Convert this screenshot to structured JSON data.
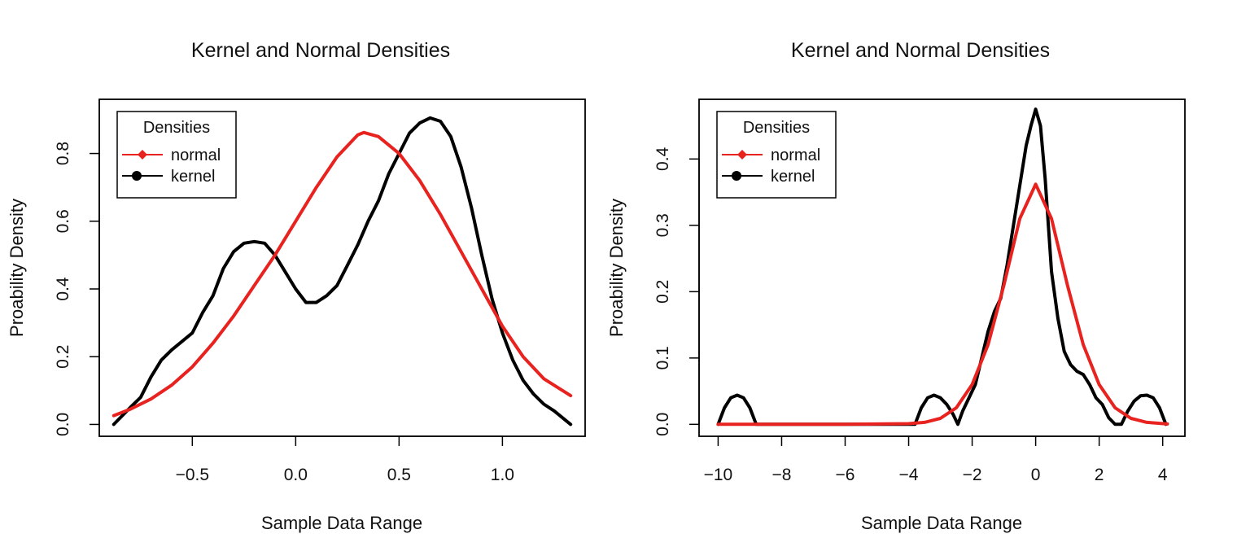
{
  "chart_data": [
    {
      "type": "line",
      "title": "Kernel and Normal Densities",
      "xlabel": "Sample Data Range",
      "ylabel": "Proability Density",
      "xlim": [
        -0.95,
        1.4
      ],
      "ylim": [
        -0.035,
        0.96
      ],
      "xticks": [
        -0.5,
        0.0,
        0.5,
        1.0
      ],
      "xtick_labels": [
        "−0.5",
        "0.0",
        "0.5",
        "1.0"
      ],
      "yticks": [
        0.0,
        0.2,
        0.4,
        0.6,
        0.8
      ],
      "ytick_labels": [
        "0.0",
        "0.2",
        "0.4",
        "0.6",
        "0.8"
      ],
      "grid": false,
      "legend": {
        "title": "Densities",
        "position": "top-left",
        "entries": [
          "normal",
          "kernel"
        ]
      },
      "series": [
        {
          "name": "normal",
          "color": "#e8231f",
          "x": [
            -0.88,
            -0.8,
            -0.7,
            -0.6,
            -0.5,
            -0.4,
            -0.3,
            -0.2,
            -0.1,
            0.0,
            0.1,
            0.2,
            0.3,
            0.33,
            0.4,
            0.5,
            0.6,
            0.7,
            0.8,
            0.9,
            1.0,
            1.1,
            1.2,
            1.33
          ],
          "y": [
            0.026,
            0.045,
            0.075,
            0.116,
            0.17,
            0.24,
            0.32,
            0.41,
            0.5,
            0.6,
            0.7,
            0.79,
            0.855,
            0.862,
            0.85,
            0.8,
            0.72,
            0.62,
            0.51,
            0.4,
            0.29,
            0.2,
            0.135,
            0.085
          ]
        },
        {
          "name": "kernel",
          "color": "#000000",
          "x": [
            -0.88,
            -0.8,
            -0.75,
            -0.7,
            -0.65,
            -0.6,
            -0.5,
            -0.45,
            -0.4,
            -0.35,
            -0.3,
            -0.25,
            -0.2,
            -0.15,
            -0.1,
            -0.05,
            0.0,
            0.05,
            0.1,
            0.15,
            0.2,
            0.25,
            0.3,
            0.35,
            0.4,
            0.45,
            0.5,
            0.55,
            0.6,
            0.65,
            0.7,
            0.75,
            0.8,
            0.85,
            0.9,
            0.95,
            1.0,
            1.05,
            1.1,
            1.15,
            1.2,
            1.25,
            1.33
          ],
          "y": [
            0.0,
            0.05,
            0.08,
            0.14,
            0.19,
            0.22,
            0.27,
            0.33,
            0.38,
            0.46,
            0.51,
            0.535,
            0.54,
            0.535,
            0.5,
            0.45,
            0.4,
            0.36,
            0.36,
            0.38,
            0.41,
            0.47,
            0.53,
            0.6,
            0.66,
            0.74,
            0.8,
            0.86,
            0.89,
            0.905,
            0.895,
            0.85,
            0.76,
            0.64,
            0.5,
            0.37,
            0.27,
            0.19,
            0.13,
            0.09,
            0.06,
            0.04,
            0.0
          ]
        }
      ]
    },
    {
      "type": "line",
      "title": "Kernel and Normal Densities",
      "xlabel": "Sample Data Range",
      "ylabel": "Proability Density",
      "xlim": [
        -10.6,
        4.7
      ],
      "ylim": [
        -0.018,
        0.49
      ],
      "xticks": [
        -10,
        -8,
        -6,
        -4,
        -2,
        0,
        2,
        4
      ],
      "xtick_labels": [
        "−10",
        "−8",
        "−6",
        "−4",
        "−2",
        "0",
        "2",
        "4"
      ],
      "yticks": [
        0.0,
        0.1,
        0.2,
        0.3,
        0.4
      ],
      "ytick_labels": [
        "0.0",
        "0.1",
        "0.2",
        "0.3",
        "0.4"
      ],
      "grid": false,
      "legend": {
        "title": "Densities",
        "position": "top-left",
        "entries": [
          "normal",
          "kernel"
        ]
      },
      "series": [
        {
          "name": "normal",
          "color": "#e8231f",
          "x": [
            -10,
            -8,
            -6,
            -4,
            -3.5,
            -3,
            -2.5,
            -2,
            -1.5,
            -1,
            -0.5,
            0,
            0.5,
            1,
            1.5,
            2,
            2.5,
            3,
            3.5,
            4.15
          ],
          "y": [
            0,
            0,
            0,
            0.001,
            0.003,
            0.009,
            0.025,
            0.06,
            0.12,
            0.21,
            0.31,
            0.362,
            0.31,
            0.21,
            0.12,
            0.06,
            0.025,
            0.009,
            0.003,
            0.0005
          ]
        },
        {
          "name": "kernel",
          "color": "#000000",
          "x": [
            -10,
            -9.8,
            -9.6,
            -9.4,
            -9.2,
            -9.0,
            -8.8,
            -7,
            -5,
            -3.8,
            -3.6,
            -3.4,
            -3.2,
            -3.0,
            -2.8,
            -2.6,
            -2.45,
            -2.3,
            -2.1,
            -1.9,
            -1.7,
            -1.5,
            -1.3,
            -1.1,
            -0.9,
            -0.7,
            -0.5,
            -0.3,
            -0.15,
            0,
            0.15,
            0.3,
            0.5,
            0.7,
            0.9,
            1.1,
            1.3,
            1.5,
            1.7,
            1.9,
            2.1,
            2.3,
            2.5,
            2.7,
            2.9,
            3.1,
            3.3,
            3.5,
            3.7,
            3.9,
            4.1
          ],
          "y": [
            0,
            0.025,
            0.04,
            0.044,
            0.04,
            0.025,
            0,
            0,
            0,
            0,
            0.025,
            0.04,
            0.044,
            0.04,
            0.03,
            0.015,
            0.0,
            0.02,
            0.04,
            0.06,
            0.1,
            0.14,
            0.17,
            0.19,
            0.24,
            0.3,
            0.36,
            0.42,
            0.45,
            0.475,
            0.45,
            0.37,
            0.23,
            0.16,
            0.11,
            0.09,
            0.08,
            0.075,
            0.06,
            0.04,
            0.03,
            0.01,
            0.0,
            0.0,
            0.02,
            0.035,
            0.043,
            0.044,
            0.04,
            0.025,
            0.0
          ]
        }
      ]
    }
  ]
}
